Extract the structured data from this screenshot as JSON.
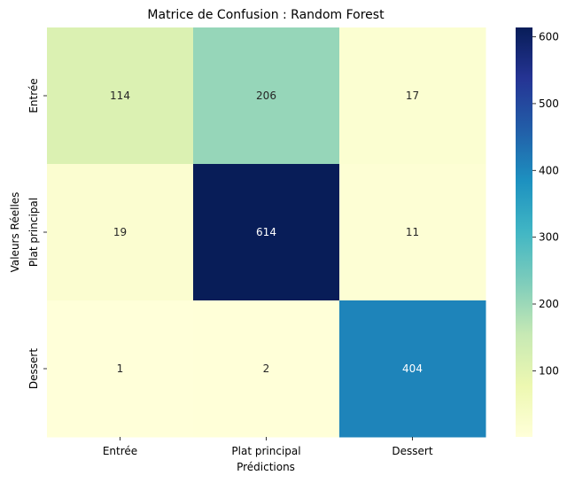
{
  "chart_data": {
    "type": "heatmap",
    "title": "Matrice de Confusion : Random Forest",
    "xlabel": "Prédictions",
    "ylabel": "Valeurs Réelles",
    "x_categories": [
      "Entrée",
      "Plat principal",
      "Dessert"
    ],
    "y_categories": [
      "Entrée",
      "Plat principal",
      "Dessert"
    ],
    "values": [
      [
        114,
        206,
        17
      ],
      [
        19,
        614,
        11
      ],
      [
        1,
        2,
        404
      ]
    ],
    "colormap": "YlGnBu",
    "colorbar": {
      "vmin": 1,
      "vmax": 614,
      "ticks": [
        100,
        200,
        300,
        400,
        500,
        600
      ]
    },
    "annotation_colors": {
      "dark_bg": "#ffffff",
      "light_bg": "#262626"
    }
  }
}
